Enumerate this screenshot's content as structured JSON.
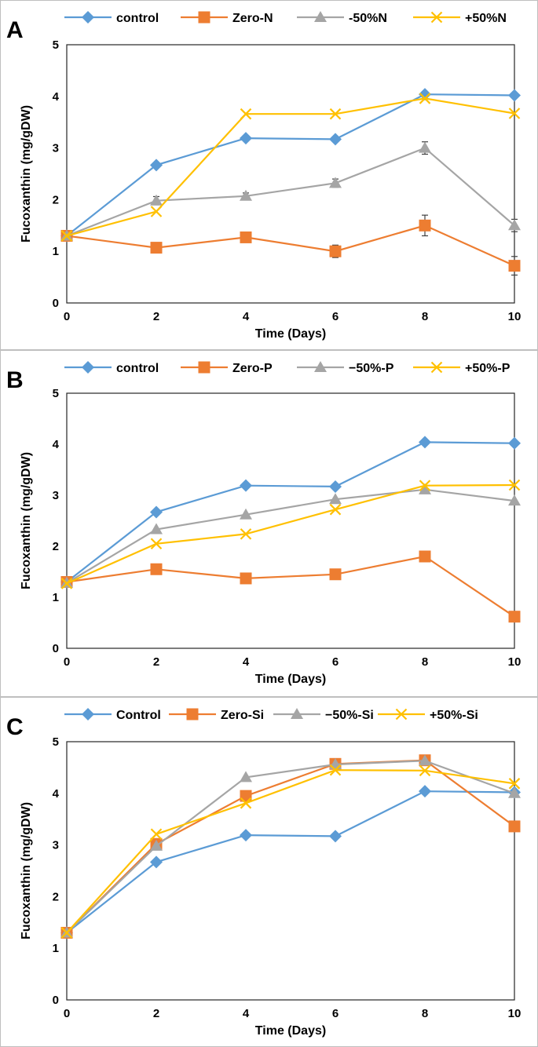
{
  "figure": {
    "series_colors": [
      "#5b9bd5",
      "#ed7d31",
      "#a5a5a5",
      "#ffc000"
    ],
    "series_markers": [
      "diamond",
      "square",
      "triangle",
      "x"
    ]
  },
  "chart_data": [
    {
      "type": "line",
      "panel_label": "A",
      "title": "",
      "xlabel": "Time (Days)",
      "ylabel": "Fucoxanthin (mg/gDW)",
      "x": [
        0,
        2,
        4,
        6,
        8,
        10
      ],
      "xticks": [
        "0",
        "2",
        "4",
        "6",
        "8",
        "10"
      ],
      "ylim": [
        0,
        5
      ],
      "yticks": [
        "0",
        "1",
        "2",
        "3",
        "4",
        "5"
      ],
      "legend_position": "top",
      "series": [
        {
          "name": "control",
          "values": [
            1.3,
            2.67,
            3.19,
            3.17,
            4.04,
            4.02
          ]
        },
        {
          "name": "Zero-N",
          "values": [
            1.3,
            1.07,
            1.27,
            1.0,
            1.5,
            0.72
          ],
          "errors": [
            0,
            0,
            0,
            0.12,
            0.2,
            0.18
          ]
        },
        {
          "name": "-50%N",
          "values": [
            1.3,
            1.98,
            2.07,
            2.32,
            3.0,
            1.5
          ],
          "errors": [
            0,
            0.08,
            0.06,
            0.08,
            0.12,
            0.12
          ]
        },
        {
          "name": "+50%N",
          "values": [
            1.3,
            1.77,
            3.66,
            3.66,
            3.96,
            3.67
          ]
        }
      ]
    },
    {
      "type": "line",
      "panel_label": "B",
      "title": "",
      "xlabel": "Time (Days)",
      "ylabel": "Fucoxanthin (mg/gDW)",
      "x": [
        0,
        2,
        4,
        6,
        8,
        10
      ],
      "xticks": [
        "0",
        "2",
        "4",
        "6",
        "8",
        "10"
      ],
      "ylim": [
        0,
        5
      ],
      "yticks": [
        "0",
        "1",
        "2",
        "3",
        "4",
        "5"
      ],
      "legend_position": "top",
      "series": [
        {
          "name": "control",
          "values": [
            1.3,
            2.67,
            3.19,
            3.17,
            4.04,
            4.02
          ]
        },
        {
          "name": "Zero-P",
          "values": [
            1.3,
            1.55,
            1.37,
            1.45,
            1.8,
            0.62
          ]
        },
        {
          "name": "−50%-P",
          "values": [
            1.28,
            2.33,
            2.62,
            2.92,
            3.11,
            2.89
          ]
        },
        {
          "name": "+50%-P",
          "values": [
            1.27,
            2.05,
            2.24,
            2.72,
            3.19,
            3.2
          ]
        }
      ]
    },
    {
      "type": "line",
      "panel_label": "C",
      "title": "",
      "xlabel": "Time (Days)",
      "ylabel": "Fucoxanthin (mg/gDW)",
      "x": [
        0,
        2,
        4,
        6,
        8,
        10
      ],
      "xticks": [
        "0",
        "2",
        "4",
        "6",
        "8",
        "10"
      ],
      "ylim": [
        0,
        5
      ],
      "yticks": [
        "0",
        "1",
        "2",
        "3",
        "4",
        "5"
      ],
      "legend_position": "top",
      "series": [
        {
          "name": "Control",
          "values": [
            1.3,
            2.67,
            3.19,
            3.17,
            4.04,
            4.02
          ]
        },
        {
          "name": "Zero-Si",
          "values": [
            1.3,
            3.02,
            3.95,
            4.57,
            4.64,
            3.36
          ]
        },
        {
          "name": "−50%-Si",
          "values": [
            1.3,
            2.98,
            4.31,
            4.56,
            4.63,
            4.0
          ]
        },
        {
          "name": "+50%-Si",
          "values": [
            1.3,
            3.21,
            3.81,
            4.45,
            4.44,
            4.19
          ]
        }
      ]
    }
  ]
}
